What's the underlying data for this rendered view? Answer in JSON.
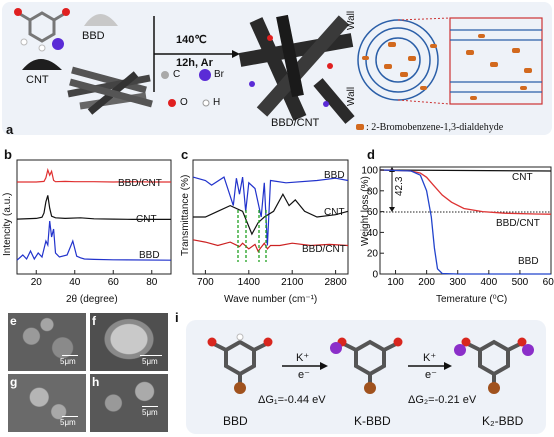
{
  "panel_labels": {
    "a": "a",
    "b": "b",
    "c": "c",
    "d": "d",
    "e": "e",
    "f": "f",
    "g": "g",
    "h": "h",
    "i": "i"
  },
  "panel_a": {
    "bbd_label": "BBD",
    "cnt_label": "CNT",
    "condition_temp": "140℃",
    "condition_time": "12h, Ar",
    "legend_atoms": [
      "C",
      "Br",
      "O",
      "H"
    ],
    "product_label": "BBD/CNT",
    "wall_label": "Wall",
    "molecule_legend": ": 2-Bromobenzene-1,3-dialdehyde",
    "colors": {
      "panel_bg": "#eef2f8",
      "carbon": "#a9a9a9",
      "bromine": "#5a2bd6",
      "oxygen": "#e02020",
      "hydrogen": "#ffffff",
      "molecule": "#d2691e"
    }
  },
  "panel_b": {
    "ylabel": "Intencity (a.u.)",
    "xlabel": "2θ (degree)",
    "xticks": [
      "20",
      "40",
      "60",
      "80"
    ],
    "series_labels": [
      "BBD/CNT",
      "CNT",
      "BBD"
    ]
  },
  "panel_c": {
    "ylabel": "Transmittance (%)",
    "xlabel": "Wave number (cm⁻¹)",
    "xticks": [
      "700",
      "1400",
      "2100",
      "2800"
    ],
    "series_labels": [
      "BBD",
      "CNT",
      "BBD/CNT"
    ]
  },
  "panel_d": {
    "ylabel": "Weight loss (%)",
    "xlabel": "Temerature (⁰C)",
    "yticks": [
      "100",
      "80",
      "60",
      "40",
      "20",
      "0"
    ],
    "xticks": [
      "100",
      "200",
      "300",
      "400",
      "500",
      "600"
    ],
    "annotation": "42.3",
    "series_labels": [
      "CNT",
      "BBD/CNT",
      "BBD"
    ]
  },
  "panel_efgh": {
    "scale_e": "5μm",
    "scale_f": "5μm",
    "scale_g": "5μm",
    "scale_h": "5μm"
  },
  "panel_i": {
    "mol1": "BBD",
    "mol2": "K-BBD",
    "mol3": "K₂-BBD",
    "step1_top": "K⁺",
    "step1_bottom": "e⁻",
    "step1_energy": "ΔG₁=-0.44 eV",
    "step2_top": "K⁺",
    "step2_bottom": "e⁻",
    "step2_energy": "ΔG₂=-0.21 eV"
  },
  "chart_data": [
    {
      "type": "line",
      "panel": "b",
      "xlabel": "2θ (degree)",
      "ylabel": "Intencity (a.u.)",
      "xlim": [
        10,
        90
      ],
      "series": [
        {
          "name": "BBD/CNT",
          "color": "#e03030",
          "x": [
            10,
            20,
            24,
            25,
            26,
            27,
            28,
            29,
            30,
            35,
            40,
            50,
            60,
            70,
            80,
            90
          ],
          "values": [
            0.04,
            0.04,
            0.06,
            0.2,
            0.5,
            0.3,
            0.45,
            0.1,
            0.05,
            0.06,
            0.05,
            0.05,
            0.04,
            0.05,
            0.04,
            0.04
          ]
        },
        {
          "name": "CNT",
          "color": "#111111",
          "x": [
            10,
            20,
            23,
            24,
            25,
            26,
            27,
            28,
            30,
            35,
            43,
            50,
            60,
            70,
            80,
            90
          ],
          "values": [
            0.06,
            0.08,
            0.12,
            0.25,
            0.6,
            0.8,
            0.4,
            0.15,
            0.1,
            0.08,
            0.1,
            0.07,
            0.06,
            0.05,
            0.05,
            0.05
          ]
        },
        {
          "name": "BBD",
          "color": "#2233cc",
          "x": [
            10,
            13,
            15,
            17,
            19,
            21,
            23,
            25,
            26,
            27,
            28,
            29,
            30,
            32,
            36,
            39,
            41,
            43,
            45,
            50,
            60,
            90
          ],
          "values": [
            0.02,
            0.15,
            0.05,
            0.25,
            0.05,
            0.2,
            0.1,
            0.5,
            0.4,
            1.0,
            0.6,
            0.8,
            0.2,
            0.1,
            0.15,
            0.5,
            0.12,
            0.08,
            0.05,
            0.04,
            0.03,
            0.02
          ]
        }
      ]
    },
    {
      "type": "line",
      "panel": "c",
      "xlabel": "Wave number (cm⁻¹)",
      "ylabel": "Transmittance (%)",
      "xlim": [
        500,
        3000
      ],
      "series": [
        {
          "name": "BBD",
          "color": "#2233cc",
          "x": [
            500,
            700,
            800,
            1000,
            1150,
            1200,
            1250,
            1300,
            1350,
            1400,
            1500,
            1600,
            1650,
            1700,
            1750,
            2000,
            2500,
            2800,
            3000
          ],
          "values": [
            0.85,
            0.82,
            0.78,
            0.85,
            0.6,
            0.84,
            0.7,
            0.85,
            0.55,
            0.8,
            0.75,
            0.5,
            0.8,
            0.25,
            0.82,
            0.8,
            0.82,
            0.84,
            0.82
          ]
        },
        {
          "name": "CNT",
          "color": "#111111",
          "x": [
            500,
            700,
            900,
            1100,
            1300,
            1450,
            1550,
            1650,
            1800,
            1950,
            2050,
            2150,
            2300,
            2500,
            2800,
            3000
          ],
          "values": [
            0.5,
            0.5,
            0.55,
            0.6,
            0.55,
            0.35,
            0.45,
            0.5,
            0.55,
            0.7,
            0.6,
            0.65,
            0.55,
            0.5,
            0.52,
            0.55
          ]
        },
        {
          "name": "BBD/CNT",
          "color": "#cc2222",
          "x": [
            500,
            700,
            900,
            1100,
            1250,
            1300,
            1400,
            1500,
            1550,
            1650,
            1700,
            1750,
            1900,
            2100,
            2400,
            2700,
            3000
          ],
          "values": [
            0.3,
            0.28,
            0.25,
            0.28,
            0.24,
            0.27,
            0.22,
            0.26,
            0.2,
            0.27,
            0.22,
            0.25,
            0.25,
            0.27,
            0.25,
            0.26,
            0.25
          ]
        }
      ]
    },
    {
      "type": "line",
      "panel": "d",
      "xlabel": "Temerature (⁰C)",
      "ylabel": "Weight loss (%)",
      "xlim": [
        50,
        600
      ],
      "ylim": [
        0,
        100
      ],
      "series": [
        {
          "name": "CNT",
          "color": "#111111",
          "x": [
            50,
            600
          ],
          "values": [
            100,
            99
          ]
        },
        {
          "name": "BBD/CNT",
          "color": "#dd3333",
          "x": [
            50,
            150,
            180,
            200,
            220,
            250,
            280,
            320,
            380,
            450,
            550,
            600
          ],
          "values": [
            100,
            99,
            97,
            93,
            86,
            76,
            69,
            63,
            60,
            58.5,
            57.7,
            57.5
          ]
        },
        {
          "name": "BBD",
          "color": "#2244cc",
          "x": [
            50,
            150,
            180,
            200,
            215,
            225,
            235,
            250,
            300,
            600
          ],
          "values": [
            100,
            99,
            95,
            80,
            55,
            25,
            5,
            0.5,
            0,
            0
          ]
        }
      ]
    }
  ]
}
